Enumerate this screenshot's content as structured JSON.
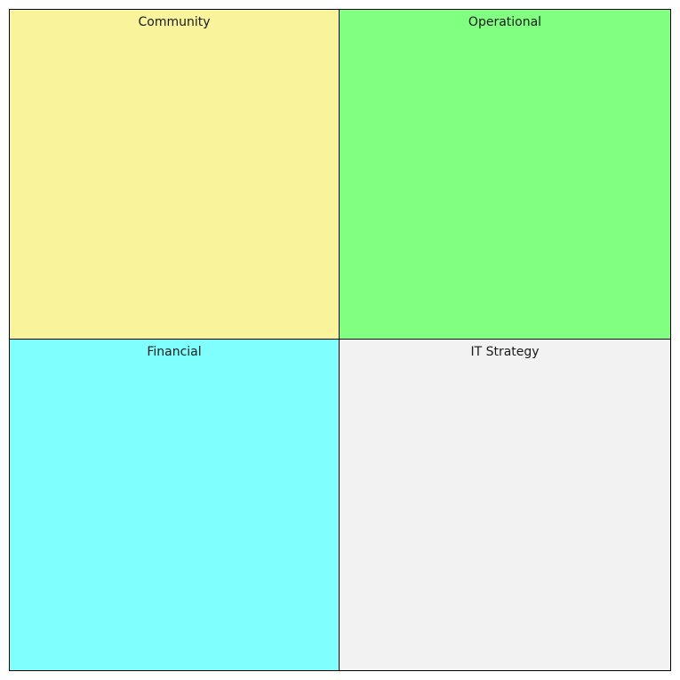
{
  "quadrants": [
    {
      "label": "Community",
      "color": "#f9f39b"
    },
    {
      "label": "Operational",
      "color": "#80ff80"
    },
    {
      "label": "Financial",
      "color": "#80ffff"
    },
    {
      "label": "IT Strategy",
      "color": "#f2f2f2"
    }
  ]
}
